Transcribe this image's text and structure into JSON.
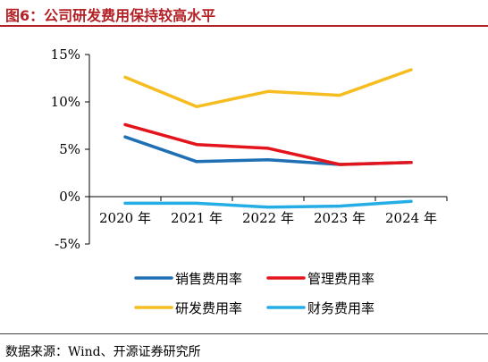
{
  "header": {
    "title": "图6：公司研发费用保持较高水平"
  },
  "footer": {
    "source": "数据来源：Wind、开源证券研究所"
  },
  "colors": {
    "sales": "#1f6fb5",
    "admin": "#e3141b",
    "rd": "#f5bd1f",
    "finance": "#25aee6",
    "title": "#b32025"
  },
  "chart_data": {
    "type": "line",
    "title": "",
    "xlabel": "",
    "ylabel": "",
    "categories": [
      "2020 年",
      "2021 年",
      "2022 年",
      "2023 年",
      "2024 年"
    ],
    "y_ticks": [
      "15%",
      "10%",
      "5%",
      "0%",
      "-5%"
    ],
    "ylim": [
      -5,
      15
    ],
    "grid": false,
    "legend_position": "bottom",
    "series": [
      {
        "name": "销售费用率",
        "color": "#1f6fb5",
        "values": [
          6.3,
          3.7,
          3.9,
          3.4,
          3.6
        ]
      },
      {
        "name": "管理费用率",
        "color": "#e3141b",
        "values": [
          7.6,
          5.5,
          5.1,
          3.4,
          3.6
        ]
      },
      {
        "name": "研发费用率",
        "color": "#f5bd1f",
        "values": [
          12.6,
          9.5,
          11.1,
          10.7,
          13.4
        ]
      },
      {
        "name": "财务费用率",
        "color": "#25aee6",
        "values": [
          -0.7,
          -0.7,
          -1.1,
          -1.0,
          -0.5
        ]
      }
    ]
  }
}
